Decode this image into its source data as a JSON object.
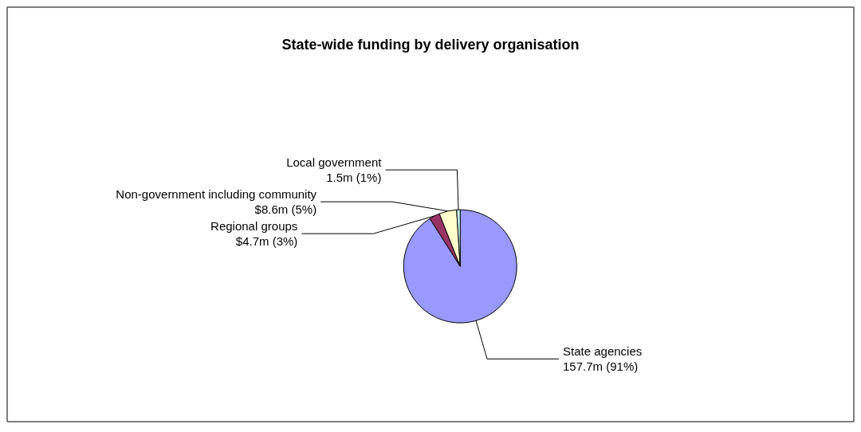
{
  "chart_data": {
    "type": "pie",
    "title": "State-wide funding by delivery organisation",
    "categories": [
      "State agencies",
      "Regional groups",
      "Non-government including community",
      "Local government"
    ],
    "values": [
      91,
      3,
      5,
      1
    ],
    "value_labels": [
      "157.7m (91%)",
      "$4.7m (3%)",
      "$8.6m (5%)",
      "1.5m (1%)"
    ],
    "colors": [
      "#9999ff",
      "#993366",
      "#ffffcc",
      "#ccffff"
    ],
    "legend": false
  }
}
